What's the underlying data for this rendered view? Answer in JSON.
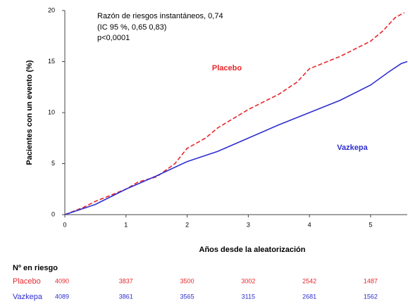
{
  "chart_data": {
    "type": "line",
    "annotation": [
      "Razón de riesgos instantáneos, 0,74",
      "(IC 95 %, 0,65 0,83)",
      "p<0,0001"
    ],
    "xlabel": "Años desde la aleatorización",
    "ylabel": "Pacientes con un evento (%)",
    "xlim": [
      0,
      5.6
    ],
    "ylim": [
      0,
      20
    ],
    "xticks": [
      0,
      1,
      2,
      3,
      4,
      5
    ],
    "yticks": [
      0,
      5,
      10,
      15,
      20
    ],
    "series": [
      {
        "name": "Placebo",
        "color": "#e8262b",
        "linestyle": "dashed",
        "x": [
          0,
          0.3,
          0.5,
          1,
          1.2,
          1.5,
          1.8,
          2,
          2.3,
          2.5,
          3,
          3.5,
          3.8,
          4,
          4.5,
          5,
          5.2,
          5.4,
          5.55
        ],
        "values": [
          0,
          0.7,
          1.3,
          2.5,
          3.2,
          3.7,
          5,
          6.5,
          7.5,
          8.5,
          10.3,
          11.8,
          13,
          14.3,
          15.5,
          17,
          18,
          19.3,
          19.8
        ]
      },
      {
        "name": "Vazkepa",
        "color": "#2f2fd0",
        "linestyle": "solid",
        "x": [
          0,
          0.5,
          1,
          1.5,
          2,
          2.5,
          3,
          3.5,
          4,
          4.5,
          5,
          5.3,
          5.5,
          5.6
        ],
        "values": [
          0,
          1,
          2.5,
          3.8,
          5.2,
          6.2,
          7.5,
          8.8,
          10,
          11.2,
          12.7,
          14,
          14.8,
          15
        ]
      }
    ],
    "risk_table": {
      "title": "Nº en riesgo",
      "rows": [
        [
          "4090",
          "3837",
          "3500",
          "3002",
          "2542",
          "1487"
        ],
        [
          "4089",
          "3861",
          "3565",
          "3115",
          "2681",
          "1562"
        ]
      ]
    }
  }
}
